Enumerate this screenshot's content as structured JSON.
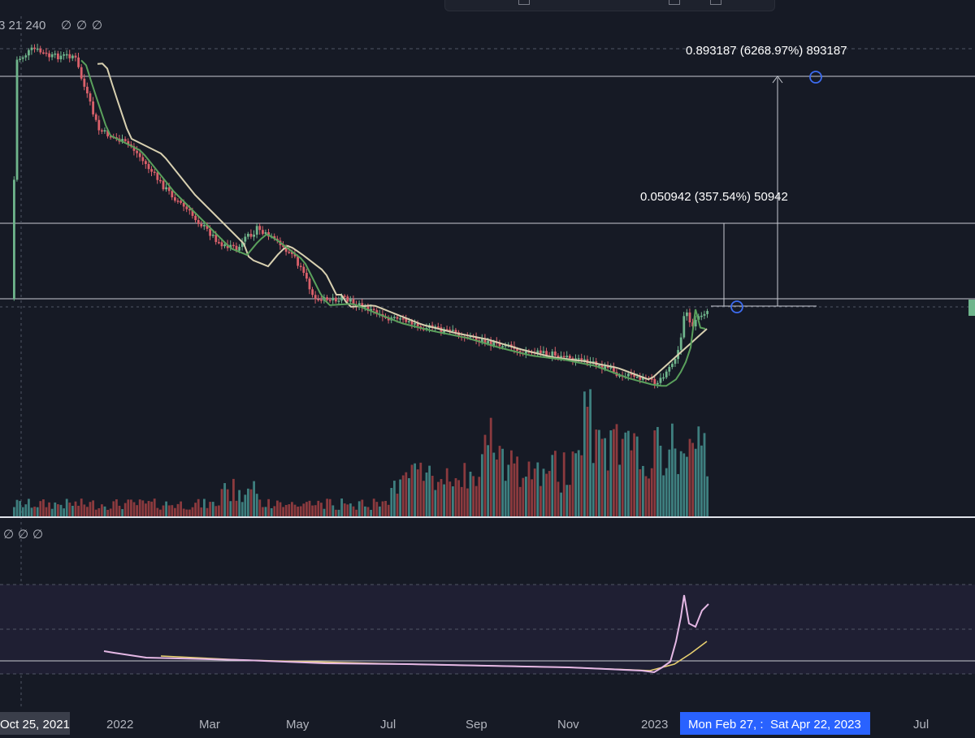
{
  "header": {
    "price_label": "3 21 240",
    "indicator_values": [
      "∅",
      "∅",
      "∅"
    ]
  },
  "lower_pane": {
    "indicator_values": [
      "∅",
      "∅",
      "∅"
    ]
  },
  "measurements": [
    {
      "value": "0.893187",
      "percent": "(6268.97%)",
      "ticks": "893187"
    },
    {
      "value": "0.050942",
      "percent": "(357.54%)",
      "ticks": "50942"
    }
  ],
  "time_axis": {
    "cursor_label": "Oct 25, 2021",
    "labels": [
      "2022",
      "Mar",
      "May",
      "Jul",
      "Sep",
      "Nov",
      "2023",
      "Jul"
    ],
    "range_start_label": "Mon Feb 27, :",
    "range_end_label": "Sat Apr 22, 2023"
  },
  "colors": {
    "background": "#161a25",
    "up": "#6fb58c",
    "down": "#d9606a",
    "ema_fast": "#5aa05c",
    "ema_slow": "#d8d0b0",
    "volume_up": "#3e7f7f",
    "volume_down": "#8b3a3e",
    "oscillator_line": "#e5b8e5",
    "oscillator_signal": "#e8d070",
    "range_highlight": "#2962ff"
  },
  "chart_data": {
    "type": "candlestick",
    "title": "",
    "x_range": [
      "2021-10-25",
      "2023-07"
    ],
    "y_scale": "log",
    "series": [
      {
        "name": "",
        "kind": "price"
      },
      {
        "name": "",
        "kind": "ema_fast"
      },
      {
        "name": "",
        "kind": "ema_slow"
      },
      {
        "name": "",
        "kind": "volume"
      },
      {
        "name": "",
        "kind": "oscillator"
      }
    ],
    "grid": false,
    "legend": "none"
  }
}
